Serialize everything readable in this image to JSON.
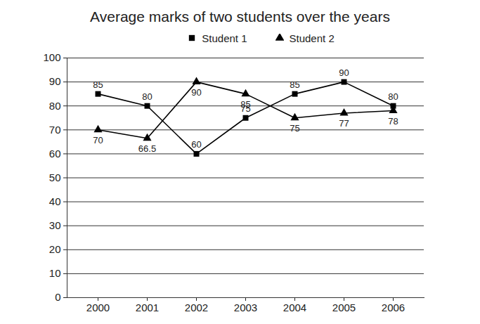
{
  "chart_data": {
    "type": "line",
    "title": "Average marks of two students over the years",
    "categories": [
      "2000",
      "2001",
      "2002",
      "2003",
      "2004",
      "2005",
      "2006"
    ],
    "series": [
      {
        "name": "Student 1",
        "color": "#000000",
        "marker": "square",
        "values": [
          85,
          80,
          60,
          75,
          85,
          90,
          80
        ]
      },
      {
        "name": "Student 2",
        "color": "#000000",
        "marker": "triangle",
        "values": [
          70,
          66.5,
          90,
          85,
          75,
          77,
          78
        ]
      }
    ],
    "ylim": [
      0,
      100
    ],
    "yticks": [
      0,
      10,
      20,
      30,
      40,
      50,
      60,
      70,
      80,
      90,
      100
    ],
    "grid": true,
    "legend": "top",
    "data_labels": true
  }
}
